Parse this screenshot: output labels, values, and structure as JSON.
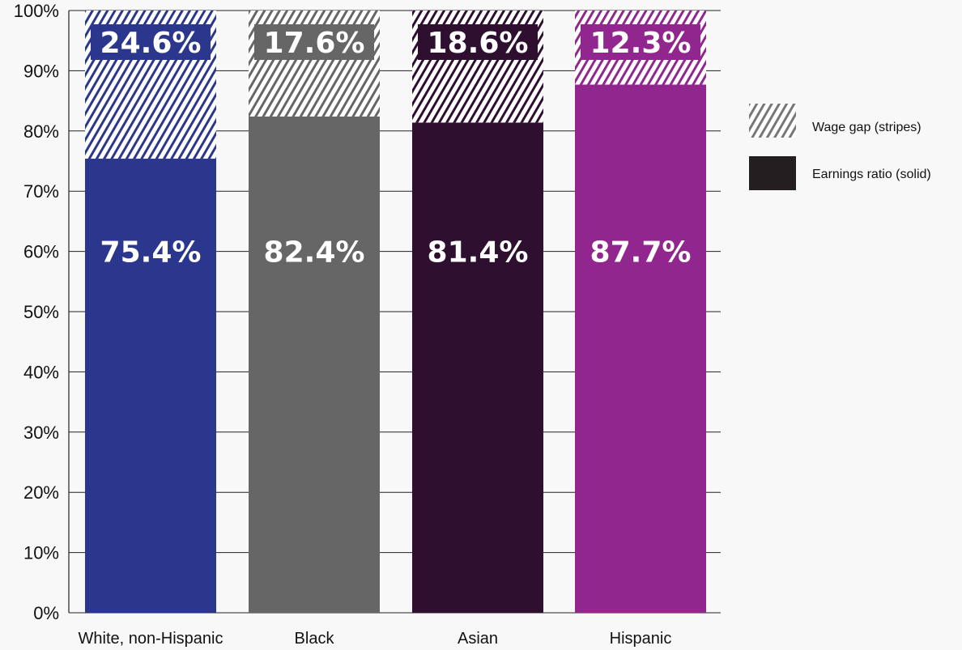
{
  "chart_data": {
    "type": "bar",
    "stacked": true,
    "categories": [
      "White, non-Hispanic",
      "Black",
      "Asian",
      "Hispanic"
    ],
    "ylim": [
      0,
      100
    ],
    "yticks": [
      "0%",
      "10%",
      "20%",
      "30%",
      "40%",
      "50%",
      "60%",
      "70%",
      "80%",
      "90%",
      "100%"
    ],
    "grid": true,
    "legend_position": "right",
    "series": [
      {
        "name": "Earnings ratio (solid)",
        "pattern": "solid",
        "values": [
          75.4,
          82.4,
          81.4,
          87.7
        ],
        "labels": [
          "75.4%",
          "82.4%",
          "81.4%",
          "87.7%"
        ]
      },
      {
        "name": "Wage gap (stripes)",
        "pattern": "stripes",
        "values": [
          24.6,
          17.6,
          18.6,
          12.3
        ],
        "labels": [
          "24.6%",
          "17.6%",
          "18.6%",
          "12.3%"
        ]
      }
    ],
    "colors": [
      "#2b378c",
      "#666666",
      "#2e0f2f",
      "#91278e"
    ],
    "legend_colors": {
      "stripes": "#777777",
      "solid": "#231f20"
    }
  }
}
